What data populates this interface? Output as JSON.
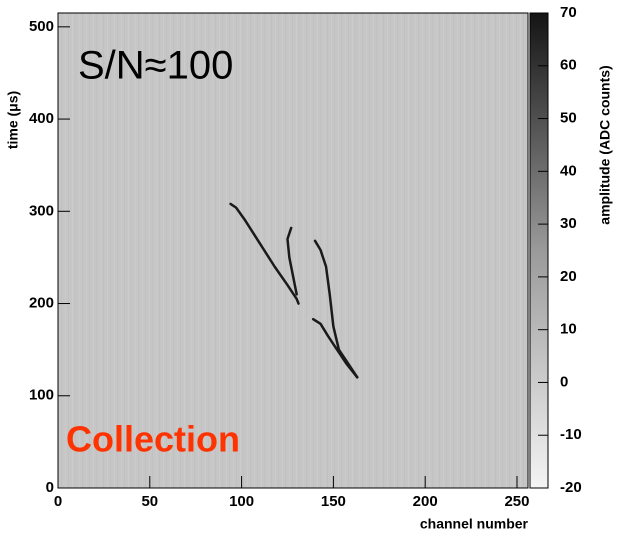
{
  "chart_data": {
    "type": "line",
    "xlabel": "channel number",
    "ylabel": "time (μs)",
    "zlabel": "amplitude (ADC counts)",
    "annotations": [
      "S/N≈100",
      "Collection"
    ],
    "xlim": [
      0,
      256
    ],
    "xticks": [
      0,
      50,
      100,
      150,
      200,
      250
    ],
    "ylim": [
      0,
      515
    ],
    "yticks": [
      0,
      100,
      200,
      300,
      400,
      500
    ],
    "zlim": [
      -20,
      70
    ],
    "zticks": [
      -20,
      -10,
      0,
      10,
      20,
      30,
      40,
      50,
      60,
      70
    ],
    "series": [
      {
        "color": "#1a1a1a",
        "x": [
          94,
          97,
          102,
          110,
          118,
          125,
          130,
          131
        ],
        "values": [
          308,
          304,
          290,
          265,
          240,
          220,
          205,
          200
        ]
      },
      {
        "color": "#1a1a1a",
        "x": [
          127,
          125,
          126,
          128,
          130
        ],
        "values": [
          282,
          270,
          250,
          230,
          210
        ]
      },
      {
        "color": "#1a1a1a",
        "x": [
          140,
          143,
          146,
          148,
          150,
          153,
          158,
          163
        ],
        "values": [
          268,
          258,
          240,
          210,
          175,
          150,
          135,
          120
        ]
      },
      {
        "color": "#1a1a1a",
        "x": [
          139,
          143,
          147,
          152,
          157,
          163
        ],
        "values": [
          183,
          178,
          165,
          150,
          135,
          120
        ]
      }
    ]
  }
}
